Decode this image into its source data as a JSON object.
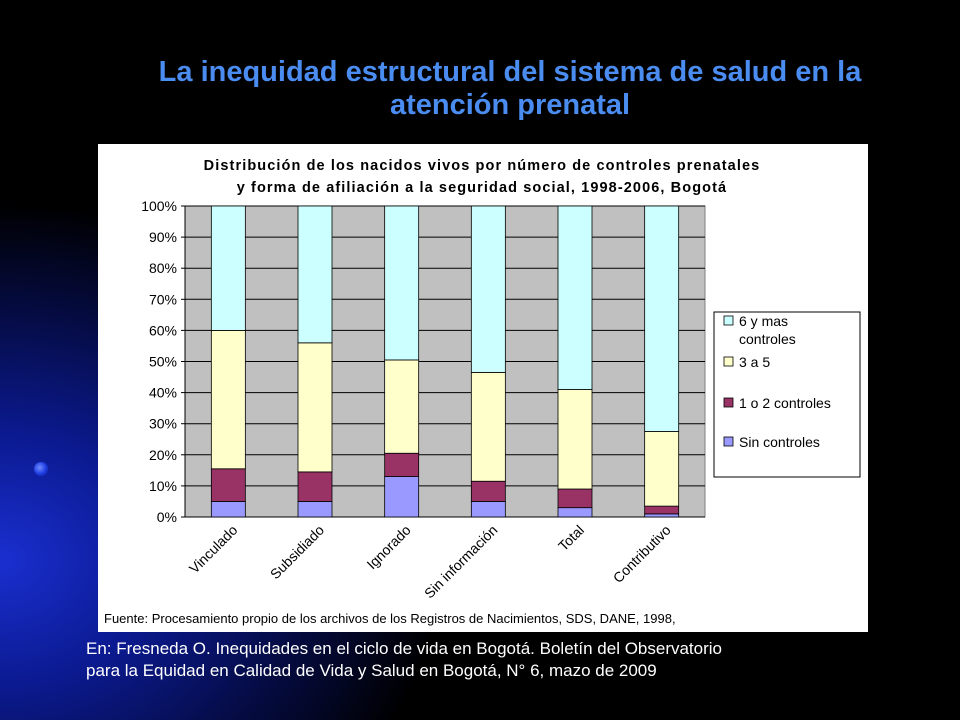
{
  "slide": {
    "title": "La inequidad estructural del sistema de salud en la atención prenatal",
    "citation_line1": "En: Fresneda O. Inequidades en el ciclo de vida en Bogotá. Boletín del Observatorio",
    "citation_line2": "para la Equidad en Calidad de Vida y Salud en Bogotá, N° 6, mazo de 2009"
  },
  "chart_data": {
    "type": "bar",
    "stacked": true,
    "title_line1": "Distribución de los nacidos vivos por número de controles prenatales",
    "title_line2": "y forma de afiliación a la seguridad social, 1998-2006, Bogotá",
    "categories": [
      "Vinculado",
      "Subsidiado",
      "Ignorado",
      "Sin información",
      "Total",
      "Contributivo"
    ],
    "y_ticks": [
      "0%",
      "10%",
      "20%",
      "30%",
      "40%",
      "50%",
      "60%",
      "70%",
      "80%",
      "90%",
      "100%"
    ],
    "ylim": [
      0,
      100
    ],
    "series": [
      {
        "name": "Sin controles",
        "color": "#9999ff",
        "values": [
          5,
          5,
          13,
          5,
          3,
          1
        ]
      },
      {
        "name": "1 o 2 controles",
        "color": "#993366",
        "values": [
          10.5,
          9.5,
          7.5,
          6.5,
          6,
          2.5
        ]
      },
      {
        "name": "3 a 5",
        "color": "#ffffcc",
        "values": [
          44.5,
          41.5,
          30,
          35,
          32,
          24
        ]
      },
      {
        "name": "6 y mas controles",
        "color": "#ccffff",
        "values": [
          40,
          44,
          49.5,
          53.5,
          59,
          72.5
        ]
      }
    ],
    "legend": {
      "placement": "right",
      "items": [
        {
          "label_lines": [
            "6 y mas",
            "controles"
          ],
          "color": "#ccffff"
        },
        {
          "label_lines": [
            "3 a 5"
          ],
          "color": "#ffffcc"
        },
        {
          "label_lines": [
            "1 o 2 controles"
          ],
          "color": "#993366"
        },
        {
          "label_lines": [
            "Sin controles"
          ],
          "color": "#9999ff"
        }
      ]
    },
    "source_note": "Fuente: Procesamiento propio de los archivos de los Registros de Nacimientos, SDS, DANE, 1998,",
    "plot_background": "#c0c0c0",
    "grid": true
  }
}
